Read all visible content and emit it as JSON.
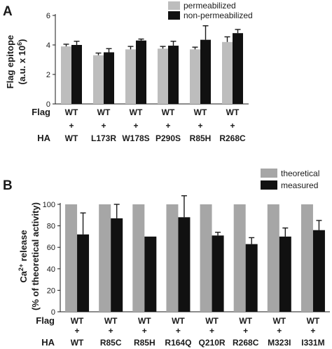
{
  "chart_data": [
    {
      "panel": "A",
      "type": "bar",
      "ylabel_line1": "Flag epitope",
      "ylabel_line2": "(a.u. x 10",
      "ylabel_exp": "6",
      "ylabel_close": ")",
      "ylim": [
        0,
        6
      ],
      "yticks": [
        "0",
        "2",
        "4",
        "6"
      ],
      "legend_position": "top-right",
      "row_labels": {
        "flag": "Flag",
        "plus": "+",
        "ha": "HA"
      },
      "flag_labels": [
        "WT",
        "WT",
        "WT",
        "WT",
        "WT",
        "WT"
      ],
      "categories": [
        "WT",
        "L173R",
        "W178S",
        "P290S",
        "R85H",
        "R268C"
      ],
      "series": [
        {
          "name": "permeabilized",
          "color": "#bdbdbd",
          "values": [
            3.9,
            3.3,
            3.7,
            3.75,
            3.7,
            4.2
          ],
          "errors": [
            0.15,
            0.15,
            0.2,
            0.15,
            0.15,
            0.35
          ]
        },
        {
          "name": "non-permeabilized",
          "color": "#111111",
          "values": [
            4.0,
            3.5,
            4.3,
            3.95,
            4.35,
            4.8
          ],
          "errors": [
            0.25,
            0.25,
            0.1,
            0.3,
            0.95,
            0.25
          ]
        }
      ]
    },
    {
      "panel": "B",
      "type": "bar",
      "ylabel_line1": "Ca",
      "ylabel_sup": "2+",
      "ylabel_line1_rest": " release",
      "ylabel_line2": "(% of theoretical activity)",
      "ylim": [
        0,
        100
      ],
      "yticks": [
        "0",
        "20",
        "40",
        "60",
        "80",
        "100"
      ],
      "legend_position": "top-right",
      "row_labels": {
        "flag": "Flag",
        "plus": "+",
        "ha": "HA"
      },
      "flag_labels": [
        "WT",
        "WT",
        "WT",
        "WT",
        "WT",
        "WT",
        "WT",
        "WT"
      ],
      "categories": [
        "WT",
        "R85C",
        "R85H",
        "R164Q",
        "Q210R",
        "R268C",
        "M323I",
        "I331M"
      ],
      "series": [
        {
          "name": "theoretical",
          "color": "#a6a6a6",
          "values": [
            100,
            100,
            100,
            100,
            100,
            100,
            100,
            100
          ],
          "errors": [
            0,
            0,
            0,
            0,
            0,
            0,
            0,
            0
          ]
        },
        {
          "name": "measured",
          "color": "#111111",
          "values": [
            72,
            87,
            70,
            88,
            71,
            63,
            70,
            76
          ],
          "errors": [
            20,
            13,
            0,
            20,
            3,
            6,
            8,
            9
          ]
        }
      ]
    }
  ]
}
